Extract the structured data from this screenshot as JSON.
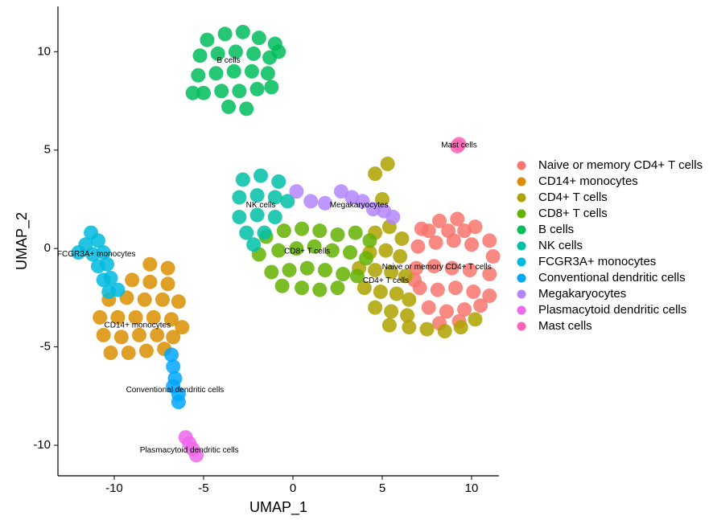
{
  "chart_data": {
    "type": "scatter",
    "xlabel": "UMAP_1",
    "ylabel": "UMAP_2",
    "xlim": [
      -13.15,
      11.53
    ],
    "ylim": [
      -11.55,
      12.3
    ],
    "xticks": [
      -10,
      -5,
      0,
      5,
      10
    ],
    "yticks": [
      -10,
      -5,
      0,
      5,
      10
    ],
    "legend": "right",
    "series": [
      {
        "name": "Naive or memory CD4+ T cells",
        "color": "#F8766D",
        "x": [
          7.2,
          8.2,
          9.2,
          10.2,
          11.0,
          7.0,
          8.0,
          9.0,
          10.0,
          11.2,
          6.9,
          7.9,
          8.9,
          9.9,
          11.0,
          7.1,
          8.1,
          9.1,
          10.1,
          11.0,
          7.6,
          8.6,
          9.6,
          10.5,
          8.2,
          9.3,
          7.6,
          8.7,
          9.6,
          6.8
        ],
        "y": [
          1.0,
          1.4,
          1.5,
          1.1,
          0.4,
          0.1,
          0.3,
          0.4,
          0.2,
          -0.4,
          -1.0,
          -0.9,
          -1.0,
          -1.1,
          -1.3,
          -2.0,
          -2.1,
          -2.0,
          -2.2,
          -2.4,
          -3.0,
          -3.2,
          -3.1,
          -2.9,
          -3.8,
          -3.7,
          0.9,
          0.9,
          0.9,
          -1.6
        ]
      },
      {
        "name": "CD14+ monocytes",
        "color": "#DB8E00",
        "x": [
          -8.0,
          -7.0,
          -9.0,
          -8.0,
          -7.0,
          -10.3,
          -9.3,
          -8.3,
          -7.3,
          -6.4,
          -10.8,
          -9.8,
          -8.8,
          -7.8,
          -6.8,
          -6.2,
          -10.6,
          -9.6,
          -8.6,
          -7.6,
          -6.7,
          -10.2,
          -9.2,
          -8.2,
          -7.2
        ],
        "y": [
          -0.8,
          -1.0,
          -1.6,
          -1.7,
          -1.8,
          -2.6,
          -2.5,
          -2.6,
          -2.6,
          -2.7,
          -3.5,
          -3.5,
          -3.5,
          -3.5,
          -3.6,
          -4.0,
          -4.4,
          -4.5,
          -4.4,
          -4.4,
          -4.5,
          -5.3,
          -5.3,
          -5.2,
          -5.1
        ]
      },
      {
        "name": "CD4+ T cells",
        "color": "#AEA200",
        "x": [
          4.6,
          5.4,
          6.1,
          4.3,
          5.2,
          6.0,
          3.7,
          4.6,
          5.5,
          6.3,
          4.0,
          4.9,
          5.8,
          6.5,
          4.6,
          5.5,
          6.4,
          5.4,
          6.5,
          7.5,
          8.5,
          9.4,
          10.2,
          5.0,
          5.3,
          4.6
        ],
        "y": [
          0.8,
          1.1,
          0.5,
          -0.2,
          -0.1,
          -0.4,
          -1.0,
          -1.1,
          -1.2,
          -1.4,
          -2.0,
          -2.2,
          -2.3,
          -2.6,
          -3.0,
          -3.2,
          -3.4,
          -3.9,
          -4.0,
          -4.1,
          -4.2,
          -4.0,
          -3.6,
          2.5,
          4.3,
          3.8
        ]
      },
      {
        "name": "CD8+ T cells",
        "color": "#64B200",
        "x": [
          -1.5,
          -0.5,
          0.5,
          1.5,
          2.5,
          3.5,
          4.3,
          -1.9,
          -0.8,
          0.2,
          1.2,
          2.2,
          3.2,
          4.1,
          -1.2,
          -0.2,
          0.8,
          1.8,
          2.8,
          3.6,
          -0.6,
          0.5,
          1.5,
          2.5
        ],
        "y": [
          0.6,
          0.9,
          1.0,
          0.9,
          0.7,
          0.8,
          0.4,
          -0.3,
          -0.1,
          0.0,
          0.1,
          -0.1,
          -0.2,
          -0.5,
          -1.2,
          -1.1,
          -1.0,
          -1.1,
          -1.3,
          -1.4,
          -1.9,
          -2.0,
          -2.1,
          -2.0
        ]
      },
      {
        "name": "B cells",
        "color": "#00BD5C",
        "x": [
          -4.8,
          -3.8,
          -2.8,
          -1.9,
          -1.0,
          -5.2,
          -4.2,
          -3.2,
          -2.2,
          -1.3,
          -5.3,
          -4.3,
          -3.3,
          -2.3,
          -1.4,
          -5.0,
          -4.0,
          -3.0,
          -2.0,
          -1.2,
          -3.6,
          -2.6,
          -5.6,
          -0.8
        ],
        "y": [
          10.6,
          10.9,
          11.0,
          10.7,
          10.4,
          9.8,
          9.9,
          10.0,
          9.9,
          9.7,
          8.8,
          8.9,
          9.0,
          9.0,
          8.9,
          7.9,
          8.0,
          8.0,
          8.1,
          8.2,
          7.2,
          7.1,
          7.9,
          10.0
        ]
      },
      {
        "name": "NK cells",
        "color": "#00C1A7",
        "x": [
          -2.8,
          -1.8,
          -0.8,
          -3.0,
          -2.0,
          -1.0,
          -0.3,
          -3.0,
          -2.0,
          -1.0,
          -2.6,
          -1.6,
          -2.2
        ],
        "y": [
          3.5,
          3.7,
          3.4,
          2.6,
          2.7,
          2.6,
          2.4,
          1.6,
          1.7,
          1.6,
          0.8,
          0.8,
          0.2
        ]
      },
      {
        "name": "FCGR3A+ monocytes",
        "color": "#00BADE",
        "x": [
          -11.3,
          -11.6,
          -10.9,
          -11.2,
          -10.6,
          -12.0,
          -10.9,
          -10.4,
          -10.6,
          -10.2,
          -10.3,
          -9.8
        ],
        "y": [
          0.8,
          0.2,
          0.4,
          -0.3,
          -0.2,
          -0.2,
          -0.9,
          -0.8,
          -1.6,
          -1.5,
          -2.2,
          -2.1
        ]
      },
      {
        "name": "Conventional dendritic cells",
        "color": "#00A6FF",
        "x": [
          -6.8,
          -6.7,
          -6.6,
          -6.7,
          -6.4,
          -6.4
        ],
        "y": [
          -5.4,
          -6.0,
          -6.6,
          -7.0,
          -7.4,
          -7.8
        ]
      },
      {
        "name": "Megakaryocytes",
        "color": "#B385FF",
        "x": [
          0.2,
          1.0,
          1.8,
          2.7,
          3.3,
          3.9,
          4.5,
          5.1,
          5.6
        ],
        "y": [
          2.9,
          2.4,
          2.3,
          2.9,
          2.6,
          2.4,
          2.0,
          1.9,
          1.6
        ]
      },
      {
        "name": "Plasmacytoid dendritic cells",
        "color": "#EF67EB",
        "x": [
          -6.0,
          -5.8,
          -5.6,
          -5.4
        ],
        "y": [
          -9.6,
          -9.9,
          -10.2,
          -10.5
        ]
      },
      {
        "name": "Mast cells",
        "color": "#FF63B6",
        "x": [
          9.3,
          9.2
        ],
        "y": [
          5.3,
          5.2
        ]
      }
    ],
    "annotations": [
      {
        "text": "B cells",
        "x": -3.6,
        "y": 9.55
      },
      {
        "text": "Mast cells",
        "x": 9.3,
        "y": 5.25
      },
      {
        "text": "NK cells",
        "x": -1.8,
        "y": 2.2
      },
      {
        "text": "Megakaryocytes",
        "x": 3.7,
        "y": 2.2
      },
      {
        "text": "CD8+ T cells",
        "x": 0.8,
        "y": -0.15
      },
      {
        "text": "Naive or memory CD4+ T cells",
        "x": 8.05,
        "y": -0.95
      },
      {
        "text": "CD4+ T cells",
        "x": 5.2,
        "y": -1.65
      },
      {
        "text": "FCGR3A+ monocytes",
        "x": -11.0,
        "y": -0.3
      },
      {
        "text": "CD14+ monocytes",
        "x": -8.7,
        "y": -3.9
      },
      {
        "text": "Conventional dendritic cells",
        "x": -6.6,
        "y": -7.2
      },
      {
        "text": "Plasmacytoid dendritic cells",
        "x": -5.8,
        "y": -10.25
      }
    ]
  }
}
